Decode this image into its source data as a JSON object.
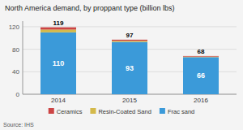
{
  "chart_data": {
    "type": "bar",
    "stacked": true,
    "title": "North America demand, by proppant type (billion lbs)",
    "categories": [
      "2014",
      "2015",
      "2016"
    ],
    "series": [
      {
        "name": "Frac sand",
        "color": "#3b9ad9",
        "values": [
          110,
          93,
          66
        ],
        "data_labels": true
      },
      {
        "name": "Resin-Coated Sand",
        "color": "#d4b94a",
        "values": [
          5,
          2,
          1
        ]
      },
      {
        "name": "Ceramics",
        "color": "#cc4444",
        "values": [
          4,
          2,
          1
        ]
      }
    ],
    "totals": [
      119,
      97,
      68
    ],
    "ylim": [
      0,
      130
    ],
    "yticks": [
      0,
      40,
      80,
      120
    ],
    "grid": true,
    "legend": "bottom",
    "source": "Source: IHS"
  }
}
